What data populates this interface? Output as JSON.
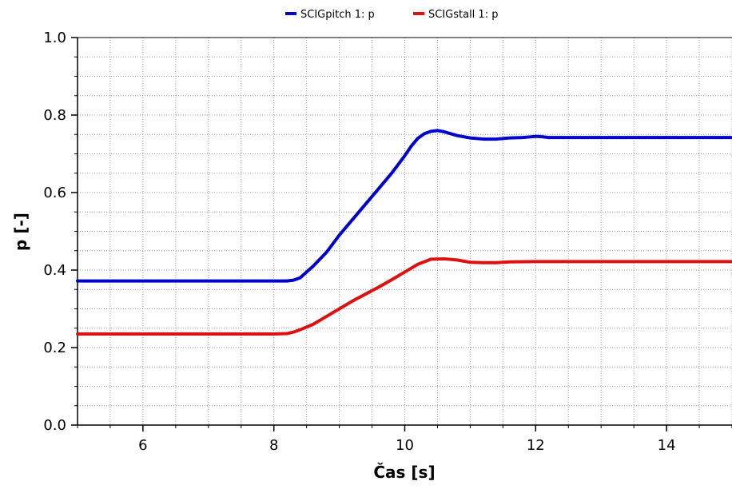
{
  "chart_data": {
    "type": "line",
    "title": "",
    "xlabel": "Čas [s]",
    "ylabel": "p [-]",
    "xlim": [
      5,
      15
    ],
    "ylim": [
      0.0,
      1.0
    ],
    "x_ticks": [
      6,
      8,
      10,
      12,
      14
    ],
    "x_tick_labels": [
      "6",
      "8",
      "10",
      "12",
      "14"
    ],
    "y_ticks": [
      0.0,
      0.2,
      0.4,
      0.6,
      0.8,
      1.0
    ],
    "y_tick_labels": [
      "0.0",
      "0.2",
      "0.4",
      "0.6",
      "0.8",
      "1.0"
    ],
    "grid": true,
    "legend_position": "top-center",
    "series": [
      {
        "name": "SCIGpitch 1: p",
        "color": "#0000cc",
        "points": [
          [
            5.0,
            0.372
          ],
          [
            6.0,
            0.372
          ],
          [
            7.0,
            0.372
          ],
          [
            8.0,
            0.372
          ],
          [
            8.2,
            0.372
          ],
          [
            8.3,
            0.374
          ],
          [
            8.4,
            0.38
          ],
          [
            8.5,
            0.395
          ],
          [
            8.6,
            0.41
          ],
          [
            8.8,
            0.445
          ],
          [
            9.0,
            0.49
          ],
          [
            9.2,
            0.53
          ],
          [
            9.4,
            0.57
          ],
          [
            9.6,
            0.61
          ],
          [
            9.8,
            0.65
          ],
          [
            10.0,
            0.695
          ],
          [
            10.1,
            0.72
          ],
          [
            10.2,
            0.74
          ],
          [
            10.3,
            0.752
          ],
          [
            10.4,
            0.758
          ],
          [
            10.5,
            0.76
          ],
          [
            10.6,
            0.757
          ],
          [
            10.7,
            0.752
          ],
          [
            10.8,
            0.747
          ],
          [
            11.0,
            0.741
          ],
          [
            11.2,
            0.738
          ],
          [
            11.4,
            0.738
          ],
          [
            11.6,
            0.741
          ],
          [
            11.8,
            0.742
          ],
          [
            12.0,
            0.745
          ],
          [
            12.1,
            0.744
          ],
          [
            12.2,
            0.742
          ],
          [
            12.5,
            0.742
          ],
          [
            13.0,
            0.742
          ],
          [
            14.0,
            0.742
          ],
          [
            15.0,
            0.742
          ]
        ]
      },
      {
        "name": "SCIGstall 1: p",
        "color": "#dd1111",
        "points": [
          [
            5.0,
            0.235
          ],
          [
            6.0,
            0.235
          ],
          [
            7.0,
            0.235
          ],
          [
            8.0,
            0.235
          ],
          [
            8.2,
            0.236
          ],
          [
            8.3,
            0.24
          ],
          [
            8.4,
            0.246
          ],
          [
            8.6,
            0.26
          ],
          [
            8.8,
            0.28
          ],
          [
            9.0,
            0.3
          ],
          [
            9.2,
            0.32
          ],
          [
            9.4,
            0.338
          ],
          [
            9.6,
            0.356
          ],
          [
            9.8,
            0.375
          ],
          [
            10.0,
            0.395
          ],
          [
            10.2,
            0.415
          ],
          [
            10.4,
            0.428
          ],
          [
            10.6,
            0.429
          ],
          [
            10.8,
            0.426
          ],
          [
            11.0,
            0.42
          ],
          [
            11.2,
            0.419
          ],
          [
            11.4,
            0.419
          ],
          [
            11.6,
            0.421
          ],
          [
            12.0,
            0.422
          ],
          [
            13.0,
            0.422
          ],
          [
            14.0,
            0.422
          ],
          [
            15.0,
            0.422
          ]
        ]
      }
    ]
  }
}
